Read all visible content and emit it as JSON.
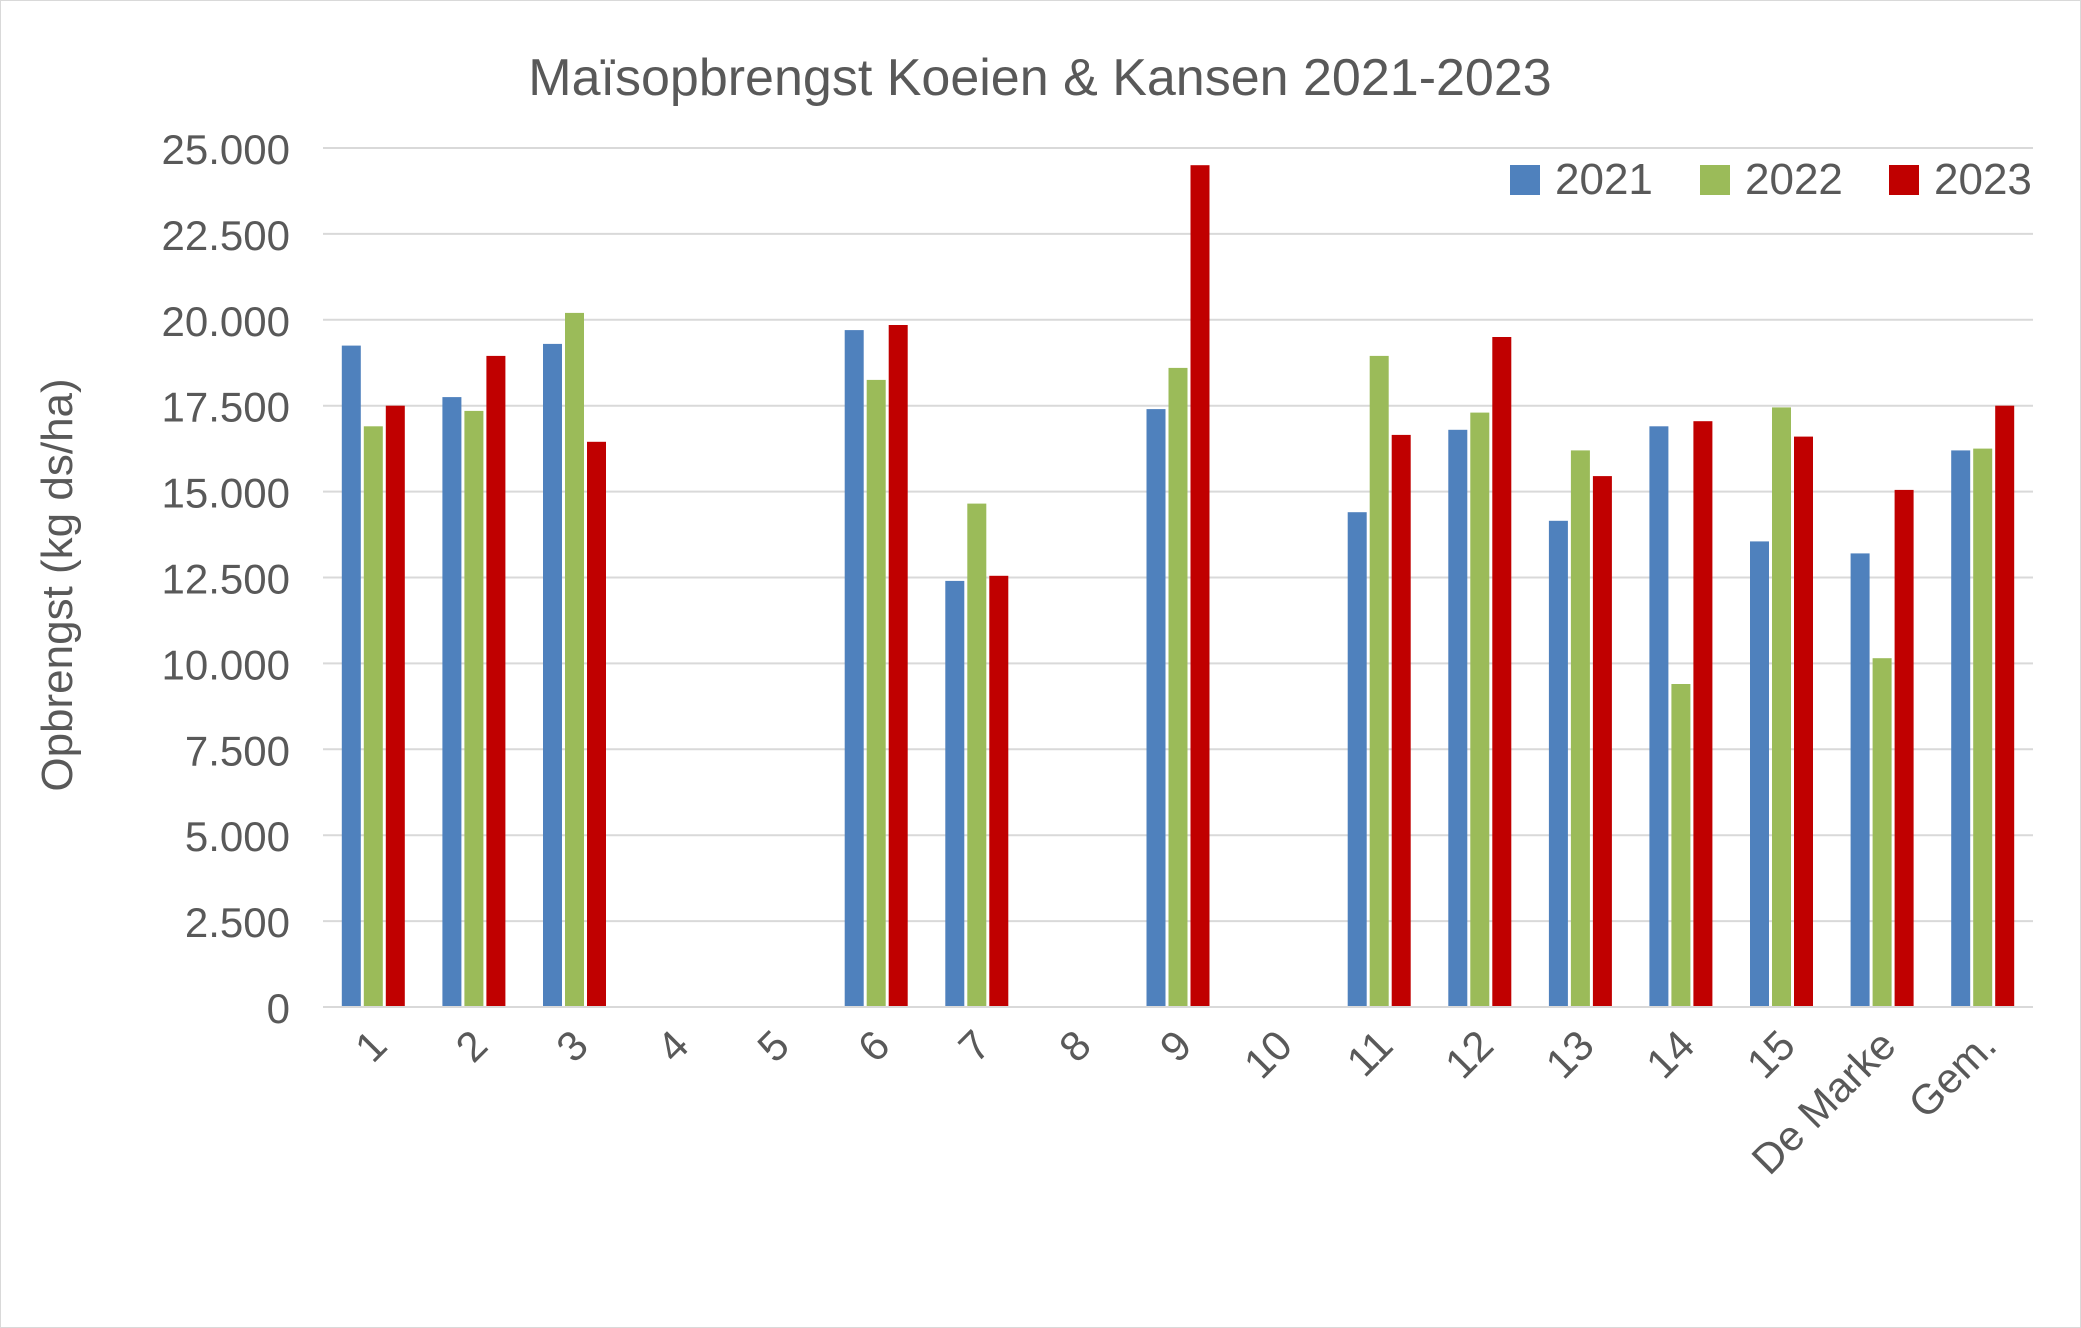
{
  "chart_data": {
    "type": "bar",
    "title": "Maïsopbrengst Koeien & Kansen 2021-2023",
    "xlabel": "",
    "ylabel": "Opbrengst (kg ds/ha)",
    "ylim": [
      0,
      25000
    ],
    "yticks": [
      "0",
      "2.500",
      "5.000",
      "7.500",
      "10.000",
      "12.500",
      "15.000",
      "17.500",
      "20.000",
      "22.500",
      "25.000"
    ],
    "grid": true,
    "legend_position": "top-right",
    "categories": [
      "1",
      "2",
      "3",
      "4",
      "5",
      "6",
      "7",
      "8",
      "9",
      "10",
      "11",
      "12",
      "13",
      "14",
      "15",
      "De Marke",
      "Gem."
    ],
    "series": [
      {
        "name": "2021",
        "color": "#4f81bd",
        "values": [
          19250,
          17750,
          19300,
          null,
          null,
          19700,
          12400,
          null,
          17400,
          null,
          14400,
          16800,
          14150,
          16900,
          13550,
          13200,
          16200
        ]
      },
      {
        "name": "2022",
        "color": "#9bbb59",
        "values": [
          16900,
          17350,
          20200,
          null,
          null,
          18250,
          14650,
          null,
          18600,
          null,
          18950,
          17300,
          16200,
          9400,
          17450,
          10150,
          16250
        ]
      },
      {
        "name": "2023",
        "color": "#c00000",
        "values": [
          17500,
          18950,
          16450,
          null,
          null,
          19850,
          12550,
          null,
          24500,
          null,
          16650,
          19500,
          15450,
          17050,
          16600,
          15050,
          17500
        ]
      }
    ]
  }
}
